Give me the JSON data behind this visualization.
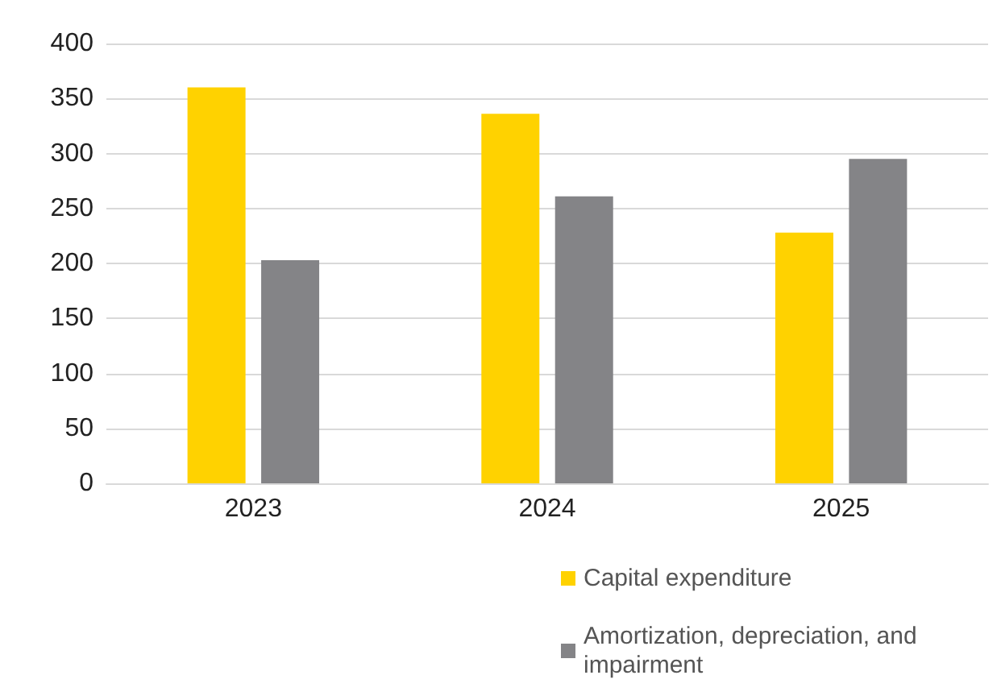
{
  "chart_data": {
    "type": "bar",
    "categories": [
      "2023",
      "2024",
      "2025"
    ],
    "series": [
      {
        "name": "Capital expenditure",
        "color": "#ffd200",
        "values": [
          360,
          336,
          228
        ]
      },
      {
        "name": "Amortization, depreciation, and impairment",
        "color": "#848487",
        "values": [
          203,
          261,
          295
        ]
      }
    ],
    "ylim": [
      0,
      400
    ],
    "yticks": [
      0,
      50,
      100,
      150,
      200,
      250,
      300,
      350,
      400
    ],
    "grid": "y",
    "legend": "bottom right"
  }
}
